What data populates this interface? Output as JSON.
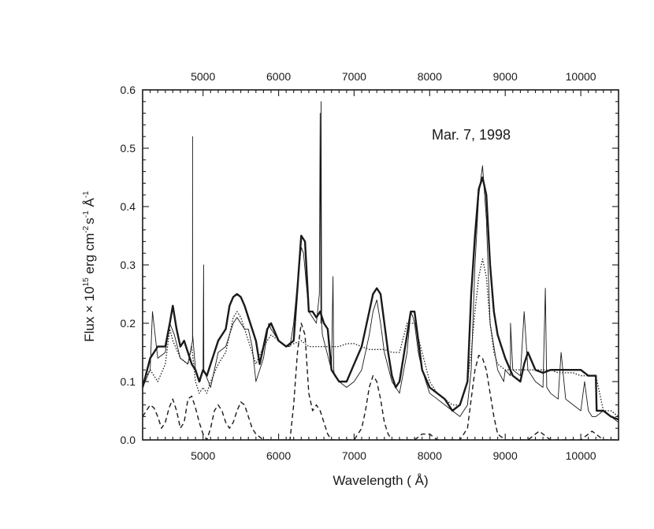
{
  "chart_data": {
    "type": "line",
    "title": "",
    "annotation": "Mar. 7, 1998",
    "xlabel": "Wavelength  ( Å)",
    "ylabel": {
      "p1": "Flux × 10",
      "e1": "15",
      "p2": " erg cm",
      "e2": "-2",
      "p3": "s",
      "e3": "-1",
      "p4": " Å",
      "e4": "-1"
    },
    "xlim": [
      4200,
      10500
    ],
    "ylim": [
      0.0,
      0.6
    ],
    "x_ticks": [
      5000,
      6000,
      7000,
      8000,
      9000,
      10000
    ],
    "x_tick_labels": [
      "5000",
      "6000",
      "7000",
      "8000",
      "9000",
      "10000"
    ],
    "y_ticks": [
      0.0,
      0.1,
      0.2,
      0.3,
      0.4,
      0.5,
      0.6
    ],
    "y_tick_labels": [
      "0.0",
      "0.1",
      "0.2",
      "0.3",
      "0.4",
      "0.5",
      "0.6"
    ],
    "grid": false,
    "legend": "none",
    "series": [
      {
        "style": "thin",
        "x": [
          4200,
          4300,
          4330,
          4400,
          4500,
          4560,
          4620,
          4700,
          4800,
          4860,
          4861,
          4862,
          4900,
          4960,
          5000,
          5007,
          5010,
          5100,
          5200,
          5300,
          5400,
          5450,
          5500,
          5550,
          5600,
          5650,
          5700,
          5800,
          5870,
          5900,
          6000,
          6100,
          6150,
          6200,
          6250,
          6300,
          6330,
          6400,
          6500,
          6540,
          6550,
          6560,
          6563,
          6570,
          6580,
          6600,
          6700,
          6720,
          6730,
          6740,
          6800,
          6900,
          7000,
          7100,
          7200,
          7250,
          7300,
          7350,
          7400,
          7500,
          7600,
          7700,
          7750,
          7780,
          7800,
          7850,
          7900,
          8000,
          8100,
          8200,
          8300,
          8400,
          8500,
          8550,
          8600,
          8650,
          8700,
          8750,
          8800,
          8900,
          8980,
          9000,
          9069,
          9070,
          9100,
          9200,
          9250,
          9300,
          9400,
          9500,
          9531,
          9550,
          9600,
          9700,
          9740,
          9800,
          9900,
          10000,
          10050,
          10100,
          10150,
          10200,
          10300,
          10400,
          10500
        ],
        "y": [
          0.09,
          0.12,
          0.22,
          0.14,
          0.15,
          0.2,
          0.18,
          0.14,
          0.13,
          0.17,
          0.52,
          0.18,
          0.12,
          0.1,
          0.12,
          0.3,
          0.12,
          0.09,
          0.15,
          0.16,
          0.2,
          0.21,
          0.2,
          0.19,
          0.19,
          0.16,
          0.1,
          0.14,
          0.2,
          0.19,
          0.17,
          0.16,
          0.16,
          0.2,
          0.27,
          0.33,
          0.32,
          0.22,
          0.2,
          0.25,
          0.56,
          0.2,
          0.58,
          0.2,
          0.18,
          0.17,
          0.12,
          0.28,
          0.12,
          0.11,
          0.1,
          0.09,
          0.1,
          0.12,
          0.18,
          0.22,
          0.24,
          0.2,
          0.15,
          0.1,
          0.08,
          0.15,
          0.22,
          0.21,
          0.2,
          0.15,
          0.12,
          0.08,
          0.07,
          0.06,
          0.05,
          0.04,
          0.06,
          0.12,
          0.3,
          0.42,
          0.47,
          0.38,
          0.2,
          0.12,
          0.1,
          0.12,
          0.11,
          0.2,
          0.12,
          0.11,
          0.22,
          0.12,
          0.1,
          0.09,
          0.26,
          0.09,
          0.08,
          0.07,
          0.15,
          0.07,
          0.06,
          0.05,
          0.1,
          0.05,
          0.04,
          0.04,
          0.05,
          0.04,
          0.03
        ]
      },
      {
        "style": "thick",
        "x": [
          4200,
          4300,
          4400,
          4500,
          4560,
          4600,
          4650,
          4700,
          4750,
          4800,
          4850,
          4900,
          4950,
          5000,
          5050,
          5100,
          5200,
          5300,
          5350,
          5400,
          5450,
          5500,
          5550,
          5600,
          5650,
          5700,
          5750,
          5800,
          5850,
          5900,
          6000,
          6100,
          6200,
          6250,
          6300,
          6350,
          6400,
          6450,
          6500,
          6550,
          6600,
          6650,
          6700,
          6800,
          6900,
          7000,
          7100,
          7200,
          7250,
          7300,
          7350,
          7400,
          7450,
          7500,
          7550,
          7600,
          7700,
          7750,
          7800,
          7850,
          7900,
          8000,
          8100,
          8200,
          8300,
          8400,
          8500,
          8550,
          8600,
          8650,
          8700,
          8750,
          8800,
          8850,
          8900,
          9000,
          9100,
          9200,
          9250,
          9300,
          9400,
          9500,
          9600,
          9700,
          9800,
          9900,
          10000,
          10100,
          10200,
          10210,
          10300,
          10400,
          10500
        ],
        "y": [
          0.09,
          0.14,
          0.16,
          0.16,
          0.2,
          0.23,
          0.19,
          0.16,
          0.17,
          0.15,
          0.13,
          0.12,
          0.1,
          0.12,
          0.11,
          0.13,
          0.17,
          0.19,
          0.23,
          0.245,
          0.25,
          0.245,
          0.23,
          0.21,
          0.19,
          0.17,
          0.13,
          0.16,
          0.19,
          0.2,
          0.17,
          0.16,
          0.17,
          0.26,
          0.35,
          0.34,
          0.22,
          0.22,
          0.21,
          0.22,
          0.2,
          0.19,
          0.12,
          0.1,
          0.1,
          0.13,
          0.16,
          0.22,
          0.25,
          0.26,
          0.25,
          0.2,
          0.15,
          0.11,
          0.09,
          0.1,
          0.18,
          0.22,
          0.22,
          0.17,
          0.12,
          0.09,
          0.08,
          0.07,
          0.05,
          0.06,
          0.1,
          0.25,
          0.35,
          0.43,
          0.45,
          0.42,
          0.3,
          0.22,
          0.18,
          0.14,
          0.11,
          0.1,
          0.13,
          0.15,
          0.12,
          0.115,
          0.12,
          0.12,
          0.12,
          0.12,
          0.12,
          0.11,
          0.11,
          0.05,
          0.05,
          0.04,
          0.035
        ]
      },
      {
        "style": "dotted",
        "x": [
          4200,
          4300,
          4400,
          4500,
          4560,
          4600,
          4700,
          4800,
          4850,
          4900,
          4950,
          5000,
          5050,
          5100,
          5200,
          5300,
          5350,
          5400,
          5450,
          5500,
          5550,
          5600,
          5650,
          5700,
          5800,
          5900,
          6000,
          6100,
          6200,
          6300,
          6400,
          6500,
          6600,
          6700,
          6800,
          6900,
          7000,
          7100,
          7200,
          7300,
          7400,
          7500,
          7600,
          7700,
          7800,
          7900,
          8000,
          8100,
          8200,
          8300,
          8400,
          8500,
          8550,
          8600,
          8650,
          8700,
          8750,
          8800,
          8850,
          8900,
          9000,
          9100,
          9200,
          9300,
          9400,
          9500,
          9600,
          9700,
          9800,
          9900,
          10000,
          10100,
          10200,
          10300,
          10400,
          10500
        ],
        "y": [
          0.1,
          0.12,
          0.1,
          0.13,
          0.19,
          0.17,
          0.14,
          0.13,
          0.16,
          0.1,
          0.08,
          0.09,
          0.08,
          0.1,
          0.13,
          0.15,
          0.18,
          0.21,
          0.22,
          0.21,
          0.19,
          0.17,
          0.15,
          0.13,
          0.16,
          0.18,
          0.17,
          0.16,
          0.165,
          0.17,
          0.16,
          0.16,
          0.16,
          0.16,
          0.16,
          0.165,
          0.165,
          0.16,
          0.155,
          0.155,
          0.155,
          0.15,
          0.15,
          0.2,
          0.2,
          0.15,
          0.1,
          0.08,
          0.07,
          0.06,
          0.06,
          0.1,
          0.15,
          0.22,
          0.28,
          0.31,
          0.28,
          0.2,
          0.15,
          0.13,
          0.12,
          0.12,
          0.12,
          0.12,
          0.12,
          0.12,
          0.12,
          0.115,
          0.115,
          0.115,
          0.11,
          0.11,
          0.11,
          0.05,
          0.05,
          0.04
        ]
      },
      {
        "style": "dashed",
        "x": [
          4200,
          4300,
          4350,
          4400,
          4450,
          4500,
          4550,
          4600,
          4650,
          4700,
          4750,
          4800,
          4850,
          4900,
          4950,
          5000,
          5050,
          5100,
          5150,
          5200,
          5250,
          5300,
          5350,
          5400,
          5450,
          5500,
          5550,
          5600,
          5650,
          5700,
          5800,
          5900,
          6000,
          6100,
          6150,
          6200,
          6250,
          6300,
          6350,
          6400,
          6450,
          6500,
          6550,
          6600,
          6650,
          6700,
          6800,
          6900,
          7000,
          7100,
          7150,
          7200,
          7250,
          7300,
          7350,
          7400,
          7450,
          7500,
          7550,
          7600,
          7700,
          7800,
          7900,
          8000,
          8100,
          8200,
          8300,
          8400,
          8500,
          8550,
          8600,
          8650,
          8700,
          8750,
          8800,
          8850,
          8900,
          9000,
          9100,
          9200,
          9300,
          9400,
          9450,
          9500,
          9600,
          9700,
          9800,
          9900,
          10000,
          10100,
          10150,
          10200,
          10300,
          10400,
          10500
        ],
        "y": [
          0.04,
          0.06,
          0.055,
          0.04,
          0.02,
          0.03,
          0.055,
          0.07,
          0.05,
          0.02,
          0.03,
          0.07,
          0.075,
          0.055,
          0.03,
          0.01,
          0.0,
          0.02,
          0.05,
          0.06,
          0.05,
          0.03,
          0.02,
          0.03,
          0.05,
          0.065,
          0.06,
          0.04,
          0.02,
          0.01,
          0.0,
          0.0,
          0.0,
          0.0,
          0.0,
          0.06,
          0.15,
          0.2,
          0.18,
          0.08,
          0.05,
          0.06,
          0.05,
          0.03,
          0.01,
          0.0,
          0.0,
          0.0,
          0.0,
          0.02,
          0.05,
          0.09,
          0.11,
          0.1,
          0.07,
          0.03,
          0.01,
          0.0,
          0.0,
          0.0,
          0.0,
          0.0,
          0.01,
          0.01,
          0.0,
          0.0,
          0.0,
          0.0,
          0.02,
          0.07,
          0.12,
          0.145,
          0.14,
          0.12,
          0.08,
          0.04,
          0.01,
          0.0,
          0.0,
          0.0,
          0.0,
          0.01,
          0.015,
          0.01,
          0.0,
          0.0,
          0.0,
          0.0,
          0.0,
          0.01,
          0.015,
          0.01,
          0.0,
          0.0,
          0.0
        ]
      }
    ]
  }
}
